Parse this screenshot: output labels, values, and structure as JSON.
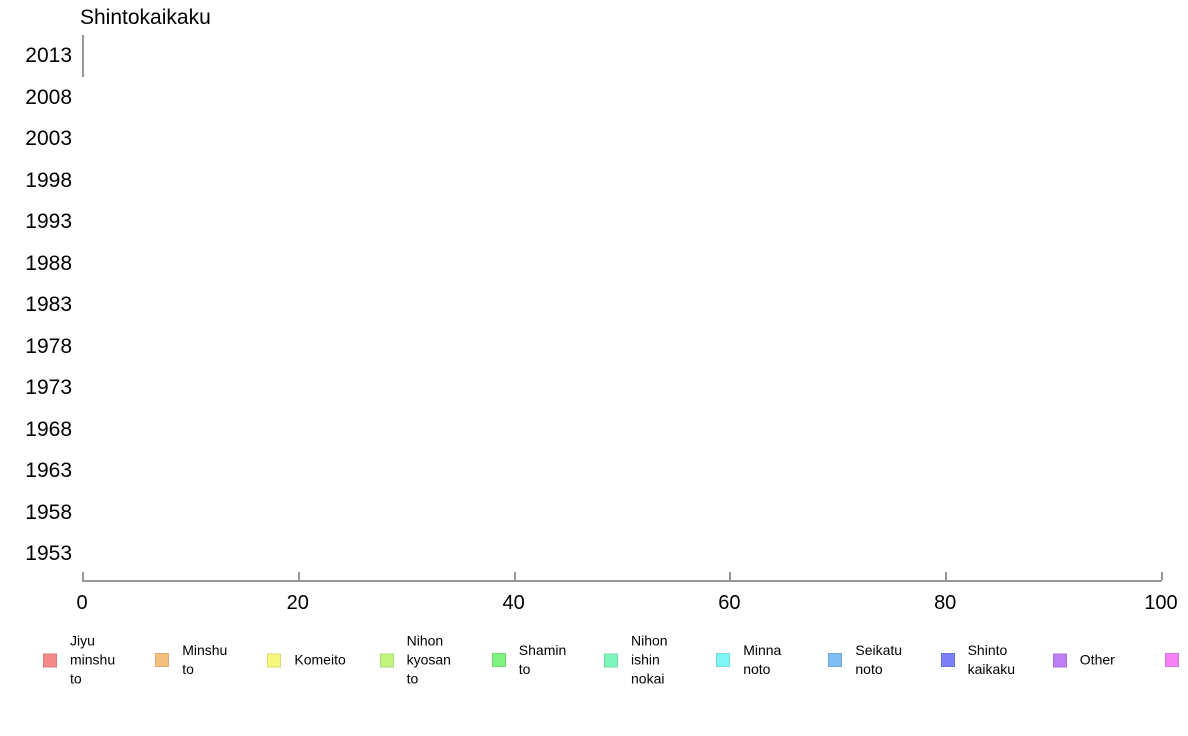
{
  "chart_data": {
    "type": "bar",
    "orientation": "horizontal",
    "title": "Shintokaikaku",
    "categories": [
      "2013",
      "2008",
      "2003",
      "1998",
      "1993",
      "1988",
      "1983",
      "1978",
      "1973",
      "1968",
      "1963",
      "1958",
      "1953"
    ],
    "xlabel": "",
    "ylabel": "",
    "xlim": [
      0,
      100
    ],
    "xticks": [
      "0",
      "20",
      "40",
      "60",
      "80",
      "100"
    ],
    "grid": false,
    "legend_position": "bottom",
    "legend": [
      {
        "label": "Jiyu minshu to",
        "lines": [
          "Jiyu",
          "minshu",
          "to"
        ],
        "color": "#f48a8a",
        "border": "#d97b7b"
      },
      {
        "label": "Minshu to",
        "lines": [
          "Minshu",
          "to"
        ],
        "color": "#f5bf7d",
        "border": "#daaa6f"
      },
      {
        "label": "Komeito",
        "lines": [
          "Komeito"
        ],
        "color": "#f7f77e",
        "border": "#dbdb70"
      },
      {
        "label": "Nihon kyosan to",
        "lines": [
          "Nihon",
          "kyosan",
          "to"
        ],
        "color": "#c3f57e",
        "border": "#addb70"
      },
      {
        "label": "Shamin to",
        "lines": [
          "Shamin",
          "to"
        ],
        "color": "#80f280",
        "border": "#72d872"
      },
      {
        "label": "Nihon ishin nokai",
        "lines": [
          "Nihon",
          "ishin",
          "nokai"
        ],
        "color": "#7ff5be",
        "border": "#71daa9"
      },
      {
        "label": "Minna noto",
        "lines": [
          "Minna",
          "noto"
        ],
        "color": "#7ff5f5",
        "border": "#71dada"
      },
      {
        "label": "Seikatu noto",
        "lines": [
          "Seikatu",
          "noto"
        ],
        "color": "#7fbef5",
        "border": "#71a9da"
      },
      {
        "label": "Shinto kaikaku",
        "lines": [
          "Shinto",
          "kaikaku"
        ],
        "color": "#7f7ff5",
        "border": "#7171da"
      },
      {
        "label": "Other",
        "lines": [
          "Other"
        ],
        "color": "#be7ff5",
        "border": "#a971da"
      },
      {
        "label": "",
        "lines": [],
        "color": "#f57ff5",
        "border": "#da71da"
      }
    ],
    "bars": [
      {
        "category": "2013",
        "value": 0
      }
    ]
  },
  "colors": {
    "axis": "#999999",
    "text": "#000000",
    "background": "#ffffff"
  }
}
